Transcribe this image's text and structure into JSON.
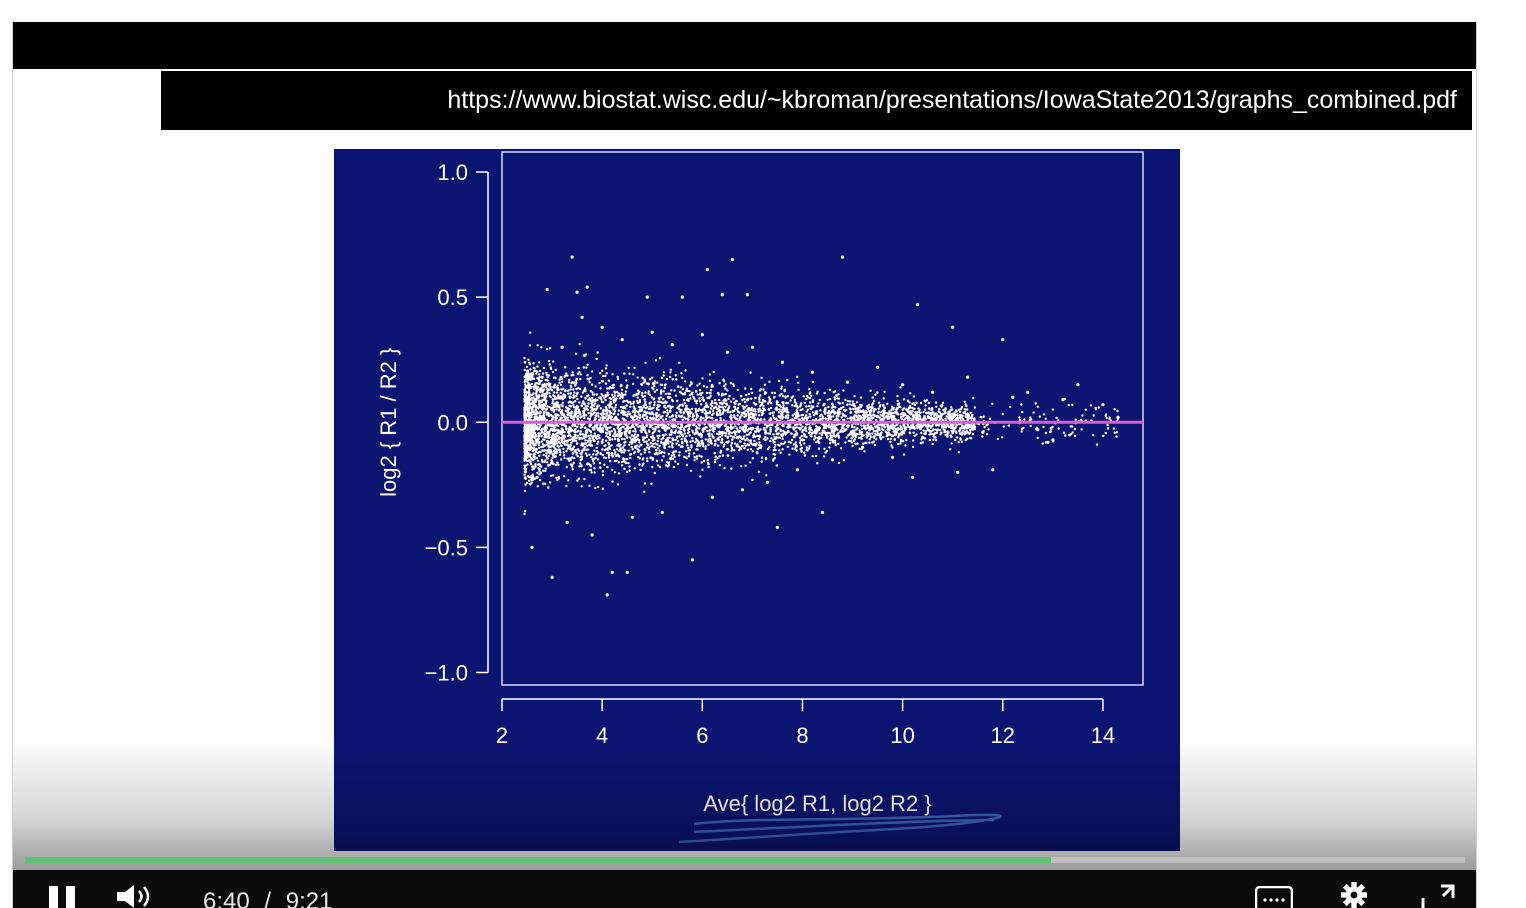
{
  "banner": {
    "url": "https://www.biostat.wisc.edu/~kbroman/presentations/IowaState2013/graphs_combined.pdf"
  },
  "chart_data": {
    "type": "scatter",
    "title": "",
    "xlabel": "Ave{ log2 R1, log2 R2 }",
    "ylabel": "log2 { R1 / R2 }",
    "xlim": [
      2,
      14.8
    ],
    "ylim": [
      -1.05,
      1.08
    ],
    "xticks": [
      2,
      4,
      6,
      8,
      10,
      12,
      14
    ],
    "yticks": [
      1.0,
      0.5,
      0.0,
      -0.5,
      -1.0
    ],
    "ytick_labels": [
      "1.0",
      "0.5",
      "0.0",
      "−0.5",
      "−1.0"
    ],
    "reference_line": {
      "y": 0.0,
      "color": "#d65fd6"
    },
    "background_color": "#0b1470",
    "point_color": "#ffffff",
    "points": [
      [
        3.4,
        0.66
      ],
      [
        6.1,
        0.61
      ],
      [
        6.6,
        0.65
      ],
      [
        8.8,
        0.66
      ],
      [
        10.3,
        0.47
      ],
      [
        2.9,
        0.53
      ],
      [
        3.5,
        0.52
      ],
      [
        3.7,
        0.54
      ],
      [
        4.9,
        0.5
      ],
      [
        5.6,
        0.5
      ],
      [
        6.4,
        0.51
      ],
      [
        6.9,
        0.51
      ],
      [
        11.0,
        0.38
      ],
      [
        12.0,
        0.33
      ],
      [
        13.5,
        0.15
      ],
      [
        14.3,
        0.02
      ],
      [
        13.0,
        -0.07
      ],
      [
        12.5,
        0.12
      ],
      [
        11.8,
        -0.19
      ],
      [
        12.9,
        -0.08
      ],
      [
        3.0,
        -0.62
      ],
      [
        4.1,
        -0.69
      ],
      [
        4.2,
        -0.6
      ],
      [
        4.5,
        -0.6
      ],
      [
        5.8,
        -0.55
      ],
      [
        7.5,
        -0.42
      ],
      [
        8.4,
        -0.36
      ],
      [
        10.2,
        -0.22
      ],
      [
        11.1,
        -0.2
      ],
      [
        2.6,
        -0.5
      ],
      [
        3.2,
        0.3
      ],
      [
        3.6,
        0.42
      ],
      [
        4.0,
        0.38
      ],
      [
        4.4,
        0.33
      ],
      [
        5.0,
        0.36
      ],
      [
        5.4,
        0.31
      ],
      [
        6.0,
        0.35
      ],
      [
        6.5,
        0.28
      ],
      [
        7.0,
        0.3
      ],
      [
        7.6,
        0.24
      ],
      [
        8.2,
        0.2
      ],
      [
        8.9,
        0.16
      ],
      [
        9.5,
        0.22
      ],
      [
        10.0,
        0.15
      ],
      [
        10.6,
        0.12
      ],
      [
        11.3,
        0.18
      ],
      [
        12.2,
        0.1
      ],
      [
        13.2,
        0.09
      ],
      [
        14.0,
        0.07
      ],
      [
        9.2,
        -0.1
      ],
      [
        9.8,
        -0.14
      ],
      [
        10.4,
        -0.06
      ],
      [
        11.6,
        -0.04
      ],
      [
        12.7,
        -0.03
      ],
      [
        3.3,
        -0.4
      ],
      [
        3.8,
        -0.45
      ],
      [
        4.6,
        -0.38
      ],
      [
        5.2,
        -0.36
      ],
      [
        6.2,
        -0.3
      ],
      [
        6.8,
        -0.27
      ],
      [
        7.3,
        -0.24
      ],
      [
        7.9,
        -0.19
      ],
      [
        8.6,
        -0.15
      ],
      [
        2.8,
        0.18
      ],
      [
        2.7,
        -0.22
      ]
    ]
  },
  "player": {
    "current_time": "6:40",
    "separator": "/",
    "duration": "9:21",
    "progress_fraction": 0.7128
  },
  "icons": {
    "play_pause": "pause-icon",
    "volume": "volume-icon",
    "captions": "captions-icon",
    "settings": "gear-icon",
    "fullscreen": "fullscreen-icon"
  }
}
